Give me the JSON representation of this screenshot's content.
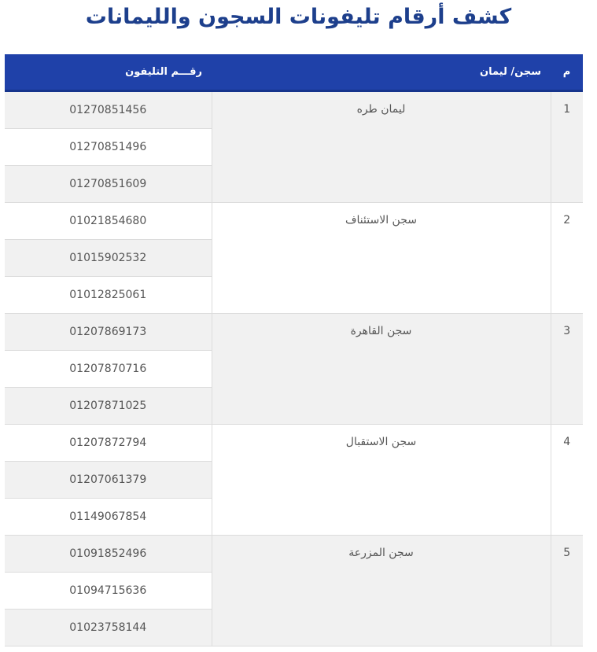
{
  "title": "كشف أرقام تليفونات السجون والليمانات",
  "table": {
    "headers": {
      "num": "م",
      "name": "سجن/ ليمان",
      "phone": "رقـــم التليفون"
    },
    "groups": [
      {
        "num": "1",
        "name": "ليمان طره",
        "phones": [
          "01270851456",
          "01270851496",
          "01270851609"
        ]
      },
      {
        "num": "2",
        "name": "سجن الاستئناف",
        "phones": [
          "01021854680",
          "01015902532",
          "01012825061"
        ]
      },
      {
        "num": "3",
        "name": "سجن القاهرة",
        "phones": [
          "01207869173",
          "01207870716",
          "01207871025"
        ]
      },
      {
        "num": "4",
        "name": "سجن الاستقبال",
        "phones": [
          "01207872794",
          "01207061379",
          "01149067854"
        ]
      },
      {
        "num": "5",
        "name": "سجن المزرعة",
        "phones": [
          "01091852496",
          "01094715636",
          "01023758144"
        ]
      }
    ]
  }
}
